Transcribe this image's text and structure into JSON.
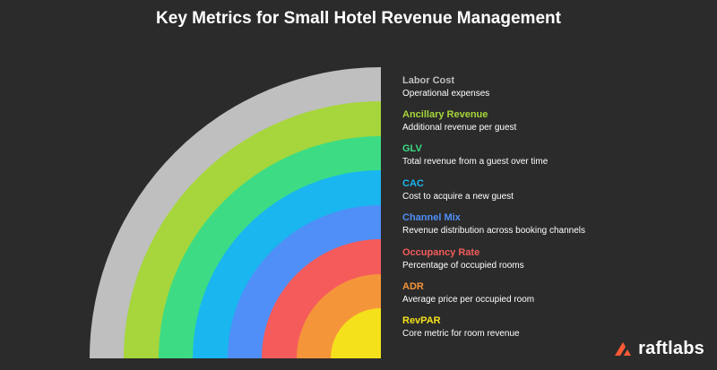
{
  "title": "Key Metrics for Small Hotel Revenue Management",
  "layers": [
    {
      "title": "Labor Cost",
      "desc": "Operational expenses",
      "color": "#bfbfbf"
    },
    {
      "title": "Ancillary Revenue",
      "desc": "Additional revenue per guest",
      "color": "#a6d63b"
    },
    {
      "title": "GLV",
      "desc": "Total revenue from a guest over time",
      "color": "#3ddc84"
    },
    {
      "title": "CAC",
      "desc": "Cost to acquire a new guest",
      "color": "#1ab6f0"
    },
    {
      "title": "Channel Mix",
      "desc": "Revenue distribution across booking channels",
      "color": "#4f8ff7"
    },
    {
      "title": "Occupancy Rate",
      "desc": "Percentage of occupied rooms",
      "color": "#f55b5b"
    },
    {
      "title": "ADR",
      "desc": "Average price per occupied room",
      "color": "#f5953a"
    },
    {
      "title": "RevPAR",
      "desc": "Core metric for room revenue",
      "color": "#f5e11b"
    }
  ],
  "brand": {
    "name": "raftlabs",
    "logo_icon": "raftlabs-logo-icon",
    "logo_color": "#ff5a36"
  }
}
